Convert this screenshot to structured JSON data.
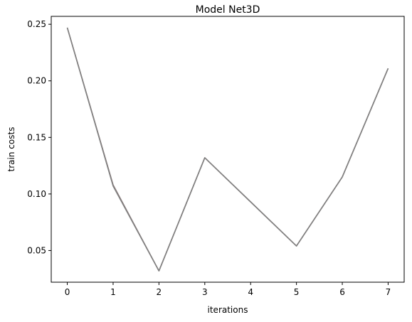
{
  "chart_data": {
    "type": "line",
    "title": "Model Net3D",
    "xlabel": "iterations",
    "ylabel": "train costs",
    "x": [
      0,
      1,
      2,
      3,
      4,
      5,
      6,
      7
    ],
    "x_ticks": [
      "0",
      "1",
      "2",
      "3",
      "4",
      "5",
      "6",
      "7"
    ],
    "y_ticks": [
      "0.05",
      "0.10",
      "0.15",
      "0.20",
      "0.25"
    ],
    "xlim": [
      -0.35,
      7.35
    ],
    "ylim": [
      0.022,
      0.257
    ],
    "grid": false,
    "series": [
      {
        "values": [
          0.247,
          0.108,
          0.032,
          0.132,
          0.093,
          0.054,
          0.115,
          0.211
        ],
        "color": "#8c7a7a"
      },
      {
        "values": [
          0.247,
          0.107,
          0.032,
          0.132,
          0.093,
          0.054,
          0.115,
          0.211
        ],
        "color": "#808080"
      }
    ]
  }
}
